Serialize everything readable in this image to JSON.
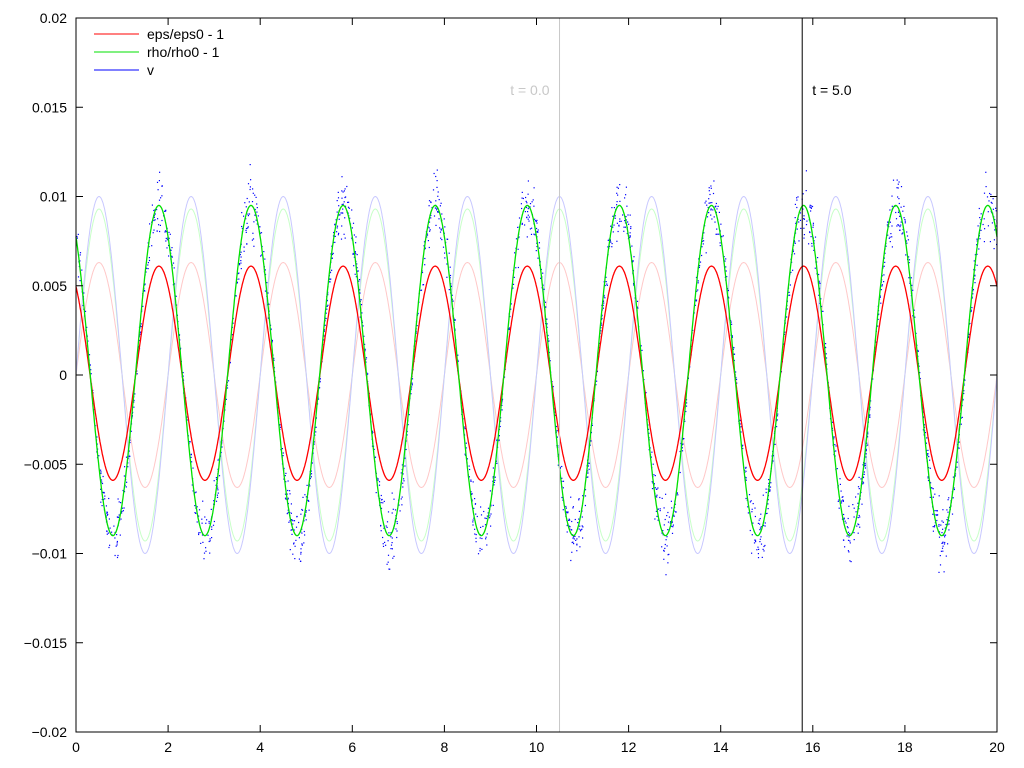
{
  "chart_data": {
    "type": "line",
    "title": "",
    "xlabel": "",
    "ylabel": "",
    "xlim": [
      0,
      20
    ],
    "ylim": [
      -0.02,
      0.02
    ],
    "x_ticks": [
      "0",
      "2",
      "4",
      "6",
      "8",
      "10",
      "12",
      "14",
      "16",
      "18",
      "20"
    ],
    "x_tick_values": [
      0,
      2,
      4,
      6,
      8,
      10,
      12,
      14,
      16,
      18,
      20
    ],
    "y_ticks": [
      "-0.02",
      "-0.015",
      "-0.01",
      "-0.005",
      "0",
      "0.005",
      "0.01",
      "0.015",
      "0.02"
    ],
    "y_tick_values": [
      -0.02,
      -0.015,
      -0.01,
      -0.005,
      0,
      0.005,
      0.01,
      0.015,
      0.02
    ],
    "grid": false,
    "legend_position": "top-left",
    "legend": [
      "eps/eps0 - 1",
      "rho/rho0 - 1",
      "v"
    ],
    "series": [
      {
        "name": "eps/eps0 - 1",
        "time": "t = 5.0",
        "color": "#ff0000",
        "style": "line",
        "model": "offset + amplitude*cos(pi*(x - peak_x))",
        "amplitude": 0.006,
        "offset": 0.0001,
        "peak_x": 1.8,
        "period": 2
      },
      {
        "name": "rho/rho0 - 1",
        "time": "t = 5.0",
        "color": "#00e000",
        "style": "line",
        "model": "offset + amplitude*cos(pi*(x - peak_x))",
        "amplitude": 0.00925,
        "offset": 0.00025,
        "peak_x": 1.8,
        "period": 2
      },
      {
        "name": "v",
        "time": "t = 5.0",
        "color": "#0000ff",
        "style": "scatter",
        "model": "offset + amplitude*cos(pi*(x - peak_x)) + noise",
        "amplitude": 0.00925,
        "offset": 0.00025,
        "peak_x": 1.8,
        "period": 2,
        "noise": 0.0012
      },
      {
        "name": "eps/eps0 - 1 (t = 0.0)",
        "time": "t = 0.0",
        "color": "#ffc8c8",
        "style": "line",
        "model": "amplitude*sin(pi*x)",
        "amplitude": 0.0063,
        "offset": 0,
        "peak_x": 0.5,
        "period": 2
      },
      {
        "name": "rho/rho0 - 1 (t = 0.0)",
        "time": "t = 0.0",
        "color": "#c8ffc8",
        "style": "line",
        "model": "amplitude*sin(pi*x)",
        "amplitude": 0.0093,
        "offset": 0,
        "peak_x": 0.5,
        "period": 2
      },
      {
        "name": "v (t = 0.0)",
        "time": "t = 0.0",
        "color": "#c8c8ff",
        "style": "line",
        "model": "amplitude*sin(pi*x)",
        "amplitude": 0.01,
        "offset": 0,
        "peak_x": 0.5,
        "period": 2
      }
    ],
    "markers": [
      {
        "label": "t = 0.0",
        "x": 10.5,
        "color": "#c8c8c8"
      },
      {
        "label": "t = 5.0",
        "x": 15.77,
        "color": "#000000"
      }
    ]
  }
}
